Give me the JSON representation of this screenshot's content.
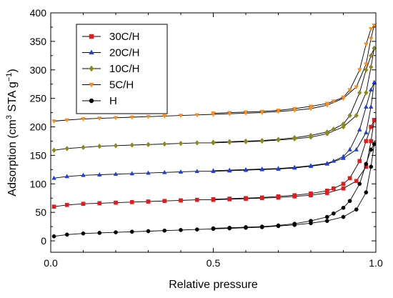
{
  "chart_data": {
    "type": "line",
    "title": "",
    "xlabel": "Relative pressure",
    "ylabel_main": "Adsorption (cm",
    "ylabel_sup": "3",
    "ylabel_mid": " STA g",
    "ylabel_sup2": "−1",
    "ylabel_end": ")",
    "xlim": [
      0.0,
      1.0
    ],
    "ylim": [
      -20,
      400
    ],
    "xticks": [
      0.0,
      0.5,
      1.0
    ],
    "xtick_labels": [
      "0.0",
      "0.5",
      "1.0"
    ],
    "yticks": [
      0,
      50,
      100,
      150,
      200,
      250,
      300,
      350,
      400
    ],
    "ytick_labels": [
      "0",
      "50",
      "100",
      "150",
      "200",
      "250",
      "300",
      "350",
      "400"
    ],
    "grid": false,
    "legend_position": "top-left",
    "series": [
      {
        "name": "30C/H",
        "color": "#e41a1c",
        "marker": "square",
        "adsorption": {
          "x": [
            0.01,
            0.05,
            0.1,
            0.15,
            0.2,
            0.25,
            0.3,
            0.35,
            0.4,
            0.45,
            0.5,
            0.55,
            0.6,
            0.65,
            0.7,
            0.75,
            0.8,
            0.85,
            0.9,
            0.94,
            0.97,
            0.985,
            0.995
          ],
          "y": [
            60,
            63,
            65,
            66,
            67,
            68,
            69,
            70,
            71,
            72,
            72,
            73,
            74,
            75,
            76,
            78,
            80,
            84,
            92,
            105,
            130,
            175,
            212
          ]
        },
        "desorption": {
          "x": [
            0.995,
            0.985,
            0.97,
            0.95,
            0.92,
            0.9,
            0.87,
            0.85,
            0.8,
            0.75,
            0.7,
            0.65,
            0.6,
            0.55,
            0.5
          ],
          "y": [
            212,
            200,
            175,
            140,
            110,
            100,
            92,
            88,
            83,
            80,
            78,
            76,
            75,
            74,
            73
          ]
        }
      },
      {
        "name": "20C/H",
        "color": "#1f3fe0",
        "marker": "triangle-up",
        "adsorption": {
          "x": [
            0.01,
            0.05,
            0.1,
            0.15,
            0.2,
            0.25,
            0.3,
            0.35,
            0.4,
            0.45,
            0.5,
            0.55,
            0.6,
            0.65,
            0.7,
            0.75,
            0.8,
            0.85,
            0.9,
            0.94,
            0.97,
            0.985,
            0.995
          ],
          "y": [
            110,
            113,
            115,
            116,
            117,
            118,
            119,
            120,
            121,
            122,
            122,
            123,
            124,
            125,
            126,
            128,
            131,
            135,
            145,
            160,
            190,
            235,
            278
          ]
        },
        "desorption": {
          "x": [
            0.995,
            0.985,
            0.97,
            0.95,
            0.92,
            0.9,
            0.87,
            0.85,
            0.8,
            0.75,
            0.7,
            0.65,
            0.6,
            0.55,
            0.5
          ],
          "y": [
            278,
            265,
            235,
            195,
            160,
            148,
            140,
            136,
            132,
            129,
            127,
            126,
            125,
            124,
            123
          ]
        }
      },
      {
        "name": "10C/H",
        "color": "#8a8a1a",
        "marker": "diamond",
        "adsorption": {
          "x": [
            0.01,
            0.05,
            0.1,
            0.15,
            0.2,
            0.25,
            0.3,
            0.35,
            0.4,
            0.45,
            0.5,
            0.55,
            0.6,
            0.65,
            0.7,
            0.75,
            0.8,
            0.85,
            0.9,
            0.94,
            0.97,
            0.985,
            0.995
          ],
          "y": [
            159,
            162,
            164,
            166,
            167,
            168,
            169,
            170,
            171,
            172,
            172,
            173,
            174,
            175,
            177,
            179,
            182,
            188,
            200,
            220,
            260,
            305,
            338
          ]
        },
        "desorption": {
          "x": [
            0.995,
            0.985,
            0.97,
            0.95,
            0.92,
            0.9,
            0.87,
            0.85,
            0.8,
            0.75,
            0.7,
            0.65,
            0.6,
            0.55,
            0.5
          ],
          "y": [
            338,
            325,
            300,
            260,
            220,
            205,
            196,
            191,
            185,
            181,
            178,
            176,
            175,
            174,
            173
          ]
        }
      },
      {
        "name": "5C/H",
        "color": "#ff8c1a",
        "marker": "triangle-down",
        "adsorption": {
          "x": [
            0.01,
            0.05,
            0.1,
            0.15,
            0.2,
            0.25,
            0.3,
            0.35,
            0.4,
            0.45,
            0.5,
            0.55,
            0.6,
            0.65,
            0.7,
            0.75,
            0.8,
            0.85,
            0.9,
            0.94,
            0.97,
            0.985,
            0.995
          ],
          "y": [
            210,
            212,
            214,
            215,
            216,
            217,
            218,
            219,
            220,
            221,
            222,
            223,
            224,
            225,
            227,
            229,
            232,
            238,
            250,
            270,
            310,
            355,
            378
          ]
        },
        "desorption": {
          "x": [
            0.995,
            0.985,
            0.97,
            0.95,
            0.92,
            0.9,
            0.87,
            0.85,
            0.8,
            0.75,
            0.7,
            0.65,
            0.6,
            0.55,
            0.5
          ],
          "y": [
            378,
            372,
            345,
            300,
            265,
            252,
            245,
            241,
            236,
            232,
            229,
            227,
            226,
            225,
            224
          ]
        }
      },
      {
        "name": "H",
        "color": "#000000",
        "marker": "circle",
        "adsorption": {
          "x": [
            0.01,
            0.05,
            0.1,
            0.15,
            0.2,
            0.25,
            0.3,
            0.35,
            0.4,
            0.45,
            0.5,
            0.55,
            0.6,
            0.65,
            0.7,
            0.75,
            0.8,
            0.85,
            0.9,
            0.94,
            0.97,
            0.985,
            0.995
          ],
          "y": [
            8,
            11,
            13,
            14,
            15,
            16,
            17,
            18,
            19,
            20,
            21,
            22,
            23,
            24,
            26,
            28,
            31,
            35,
            42,
            55,
            85,
            130,
            170
          ]
        },
        "desorption": {
          "x": [
            0.995,
            0.985,
            0.97,
            0.95,
            0.92,
            0.9,
            0.87,
            0.85,
            0.8,
            0.75,
            0.7,
            0.65,
            0.6,
            0.55,
            0.5
          ],
          "y": [
            170,
            160,
            135,
            100,
            70,
            58,
            48,
            42,
            35,
            30,
            27,
            25,
            24,
            23,
            22
          ]
        }
      }
    ]
  }
}
